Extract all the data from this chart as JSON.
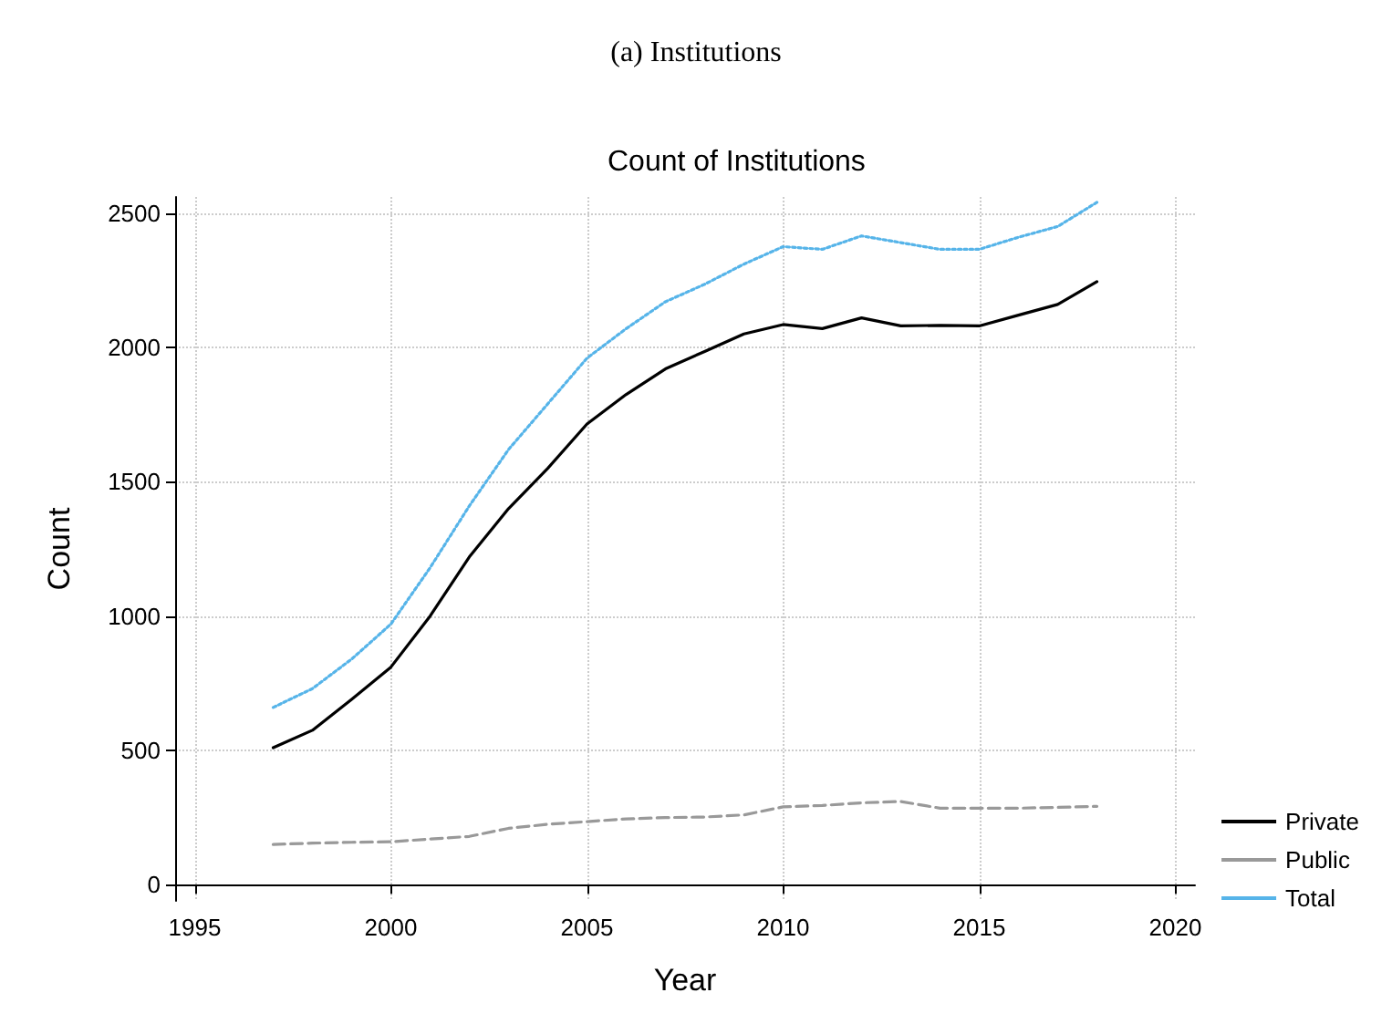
{
  "chart_data": {
    "type": "line",
    "title": "(a) Institutions",
    "subtitle": "Count of Institutions",
    "xlabel": "Year",
    "ylabel": "Count",
    "x": [
      1997,
      1998,
      1999,
      2000,
      2001,
      2002,
      2003,
      2004,
      2005,
      2006,
      2007,
      2008,
      2009,
      2010,
      2011,
      2012,
      2013,
      2014,
      2015,
      2016,
      2017,
      2018
    ],
    "series": [
      {
        "name": "Private",
        "color": "#000000",
        "line_style": "solid",
        "values": [
          510,
          575,
          690,
          810,
          1000,
          1220,
          1400,
          1550,
          1715,
          1825,
          1920,
          1985,
          2050,
          2085,
          2070,
          2110,
          2080,
          2082,
          2080,
          2120,
          2160,
          2245
        ]
      },
      {
        "name": "Public",
        "color": "#999999",
        "line_style": "dashed",
        "values": [
          150,
          155,
          158,
          160,
          170,
          180,
          210,
          225,
          235,
          245,
          250,
          252,
          260,
          290,
          295,
          305,
          310,
          285,
          285,
          285,
          288,
          292
        ]
      },
      {
        "name": "Total",
        "color": "#56b4e9",
        "line_style": "dotted",
        "values": [
          660,
          730,
          840,
          970,
          1180,
          1410,
          1620,
          1790,
          1960,
          2070,
          2170,
          2235,
          2310,
          2375,
          2365,
          2415,
          2390,
          2365,
          2365,
          2410,
          2450,
          2540
        ]
      }
    ],
    "xlim": [
      1994.5,
      2020.5
    ],
    "xticks": [
      1995,
      2000,
      2005,
      2010,
      2015,
      2020
    ],
    "ylim": [
      -60,
      2560
    ],
    "yticks": [
      0,
      500,
      1000,
      1500,
      2000,
      2500
    ],
    "grid": true,
    "legend": "bottom right"
  }
}
